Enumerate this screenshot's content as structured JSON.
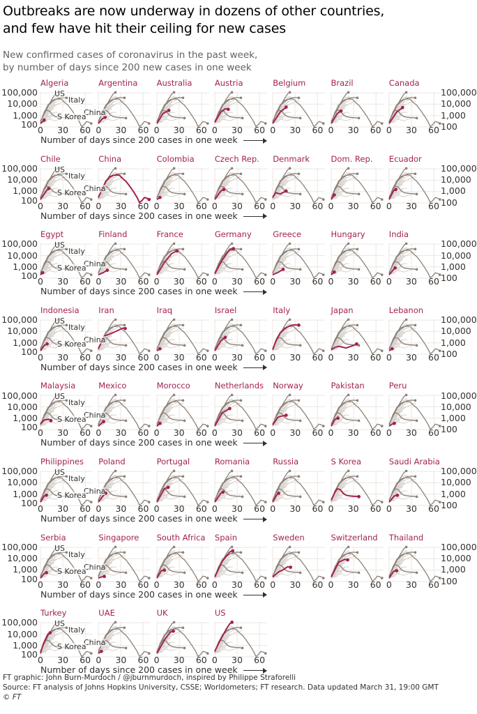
{
  "header": {
    "title_line1": "Outbreaks are now underway in dozens of other countries,",
    "title_line2": "and few have hit their ceiling for new cases",
    "subtitle_line1": "New confirmed cases of coronavirus in the past week,",
    "subtitle_line2": "by number of days since 200 new cases in one week"
  },
  "footer": {
    "credit": "FT graphic: John Burn-Murdoch / @jburnmurdoch, inspired by Philippe Straforelli",
    "source": "Source: FT analysis of Johns Hopkins University, CSSE; Worldometers; FT research. Data updated March 31, 19:00 GMT",
    "copyright": "© FT"
  },
  "colors": {
    "highlight": "#a3224f",
    "reference": "#8c8279",
    "background_lines": "#d9d4cf",
    "grid": "#ebe6e1"
  },
  "chart_data": {
    "type": "line",
    "layout": "small-multiples",
    "xlabel": "Number of days since 200 cases in one week",
    "ylabel": "New confirmed cases in the past week",
    "y_scale": "log",
    "ylim": [
      100,
      100000
    ],
    "xlim": [
      0,
      70
    ],
    "y_ticks": [
      "100,000",
      "10,000",
      "1,000",
      "100"
    ],
    "y_tick_values": [
      100000,
      10000,
      1000,
      100
    ],
    "x_ticks": [
      "0",
      "30",
      "60"
    ],
    "x_tick_values": [
      0,
      30,
      60
    ],
    "reference_series": [
      {
        "name": "US",
        "points": [
          [
            0,
            300
          ],
          [
            5,
            1500
          ],
          [
            10,
            6000
          ],
          [
            15,
            25000
          ],
          [
            20,
            80000
          ],
          [
            23,
            110000
          ]
        ]
      },
      {
        "name": "Italy",
        "points": [
          [
            0,
            250
          ],
          [
            5,
            2000
          ],
          [
            10,
            7000
          ],
          [
            15,
            15000
          ],
          [
            20,
            25000
          ],
          [
            25,
            35000
          ],
          [
            30,
            38000
          ],
          [
            35,
            36000
          ]
        ]
      },
      {
        "name": "China",
        "points": [
          [
            0,
            300
          ],
          [
            5,
            1500
          ],
          [
            10,
            8000
          ],
          [
            15,
            20000
          ],
          [
            20,
            26000
          ],
          [
            25,
            29000
          ],
          [
            28,
            28000
          ],
          [
            32,
            15000
          ],
          [
            37,
            8000
          ],
          [
            42,
            3000
          ],
          [
            47,
            1000
          ],
          [
            52,
            300
          ],
          [
            55,
            110
          ],
          [
            58,
            150
          ],
          [
            62,
            300
          ],
          [
            65,
            260
          ],
          [
            68,
            200
          ]
        ]
      },
      {
        "name": "S Korea",
        "points": [
          [
            0,
            300
          ],
          [
            5,
            1500
          ],
          [
            8,
            3000
          ],
          [
            12,
            2500
          ],
          [
            16,
            1200
          ],
          [
            20,
            800
          ],
          [
            25,
            700
          ],
          [
            30,
            650
          ],
          [
            37,
            600
          ]
        ]
      }
    ],
    "countries": [
      {
        "name": "Algeria",
        "points": [
          [
            0,
            200
          ],
          [
            5,
            400
          ]
        ]
      },
      {
        "name": "Argentina",
        "points": [
          [
            0,
            200
          ],
          [
            5,
            500
          ],
          [
            9,
            700
          ]
        ]
      },
      {
        "name": "Australia",
        "points": [
          [
            0,
            200
          ],
          [
            8,
            1500
          ],
          [
            16,
            2800
          ]
        ]
      },
      {
        "name": "Austria",
        "points": [
          [
            0,
            250
          ],
          [
            8,
            2000
          ],
          [
            14,
            4000
          ],
          [
            18,
            3500
          ]
        ]
      },
      {
        "name": "Belgium",
        "points": [
          [
            0,
            200
          ],
          [
            10,
            2000
          ],
          [
            18,
            5500
          ]
        ]
      },
      {
        "name": "Brazil",
        "points": [
          [
            0,
            200
          ],
          [
            8,
            1500
          ],
          [
            13,
            2500
          ]
        ]
      },
      {
        "name": "Canada",
        "points": [
          [
            0,
            200
          ],
          [
            10,
            2000
          ],
          [
            18,
            5000
          ]
        ]
      },
      {
        "name": "Chile",
        "points": [
          [
            0,
            200
          ],
          [
            8,
            1200
          ],
          [
            11,
            1800
          ]
        ]
      },
      {
        "name": "China",
        "points": [
          [
            0,
            300
          ],
          [
            5,
            1500
          ],
          [
            10,
            8000
          ],
          [
            15,
            20000
          ],
          [
            20,
            26000
          ],
          [
            25,
            29000
          ],
          [
            28,
            28000
          ],
          [
            32,
            15000
          ],
          [
            37,
            8000
          ],
          [
            42,
            3000
          ],
          [
            47,
            1000
          ],
          [
            52,
            300
          ],
          [
            55,
            110
          ],
          [
            58,
            150
          ],
          [
            62,
            300
          ],
          [
            65,
            260
          ],
          [
            68,
            200
          ]
        ]
      },
      {
        "name": "Colombia",
        "points": [
          [
            0,
            200
          ],
          [
            4,
            300
          ]
        ]
      },
      {
        "name": "Czech Rep.",
        "points": [
          [
            0,
            200
          ],
          [
            8,
            1100
          ],
          [
            12,
            1500
          ]
        ]
      },
      {
        "name": "Denmark",
        "points": [
          [
            0,
            300
          ],
          [
            4,
            800
          ],
          [
            10,
            600
          ],
          [
            18,
            1100
          ]
        ]
      },
      {
        "name": "Dom. Rep.",
        "points": [
          [
            0,
            200
          ],
          [
            4,
            500
          ]
        ]
      },
      {
        "name": "Ecuador",
        "points": [
          [
            0,
            200
          ],
          [
            6,
            1200
          ],
          [
            9,
            1500
          ]
        ]
      },
      {
        "name": "Egypt",
        "points": [
          [
            0,
            200
          ],
          [
            3,
            300
          ]
        ]
      },
      {
        "name": "Finland",
        "points": [
          [
            0,
            200
          ],
          [
            6,
            300
          ],
          [
            12,
            500
          ]
        ]
      },
      {
        "name": "France",
        "points": [
          [
            0,
            200
          ],
          [
            10,
            2500
          ],
          [
            20,
            15000
          ],
          [
            27,
            25000
          ]
        ]
      },
      {
        "name": "Germany",
        "points": [
          [
            0,
            250
          ],
          [
            10,
            4000
          ],
          [
            20,
            35000
          ],
          [
            25,
            40000
          ]
        ]
      },
      {
        "name": "Greece",
        "points": [
          [
            0,
            200
          ],
          [
            8,
            350
          ],
          [
            14,
            600
          ]
        ]
      },
      {
        "name": "Hungary",
        "points": [
          [
            0,
            200
          ],
          [
            4,
            350
          ]
        ]
      },
      {
        "name": "India",
        "points": [
          [
            0,
            200
          ],
          [
            5,
            500
          ],
          [
            8,
            800
          ]
        ]
      },
      {
        "name": "Indonesia",
        "points": [
          [
            0,
            200
          ],
          [
            5,
            600
          ],
          [
            9,
            800
          ]
        ]
      },
      {
        "name": "Iran",
        "points": [
          [
            0,
            300
          ],
          [
            8,
            4000
          ],
          [
            20,
            8000
          ],
          [
            33,
            20000
          ],
          [
            36,
            18000
          ]
        ]
      },
      {
        "name": "Iraq",
        "points": [
          [
            0,
            200
          ],
          [
            4,
            300
          ]
        ]
      },
      {
        "name": "Israel",
        "points": [
          [
            0,
            200
          ],
          [
            8,
            1500
          ],
          [
            14,
            3000
          ]
        ]
      },
      {
        "name": "Italy",
        "points": [
          [
            0,
            250
          ],
          [
            5,
            2000
          ],
          [
            10,
            7000
          ],
          [
            15,
            15000
          ],
          [
            20,
            25000
          ],
          [
            25,
            35000
          ],
          [
            30,
            38000
          ],
          [
            35,
            36000
          ]
        ]
      },
      {
        "name": "Japan",
        "points": [
          [
            0,
            250
          ],
          [
            5,
            400
          ],
          [
            10,
            500
          ],
          [
            20,
            350
          ],
          [
            30,
            600
          ],
          [
            34,
            800
          ]
        ]
      },
      {
        "name": "Lebanon",
        "points": [
          [
            0,
            200
          ],
          [
            4,
            300
          ]
        ]
      },
      {
        "name": "Malaysia",
        "points": [
          [
            0,
            300
          ],
          [
            5,
            700
          ],
          [
            11,
            800
          ],
          [
            14,
            600
          ]
        ]
      },
      {
        "name": "Mexico",
        "points": [
          [
            0,
            200
          ],
          [
            5,
            400
          ],
          [
            7,
            500
          ]
        ]
      },
      {
        "name": "Morocco",
        "points": [
          [
            0,
            200
          ],
          [
            4,
            350
          ]
        ]
      },
      {
        "name": "Netherlands",
        "points": [
          [
            0,
            200
          ],
          [
            10,
            3000
          ],
          [
            20,
            7000
          ]
        ]
      },
      {
        "name": "Norway",
        "points": [
          [
            0,
            250
          ],
          [
            7,
            1200
          ],
          [
            12,
            1500
          ],
          [
            18,
            1800
          ]
        ]
      },
      {
        "name": "Pakistan",
        "points": [
          [
            0,
            200
          ],
          [
            5,
            800
          ],
          [
            9,
            1000
          ]
        ]
      },
      {
        "name": "Peru",
        "points": [
          [
            0,
            200
          ],
          [
            4,
            300
          ],
          [
            7,
            350
          ]
        ]
      },
      {
        "name": "Philippines",
        "points": [
          [
            0,
            200
          ],
          [
            5,
            700
          ],
          [
            8,
            800
          ]
        ]
      },
      {
        "name": "Poland",
        "points": [
          [
            0,
            200
          ],
          [
            7,
            800
          ],
          [
            10,
            1200
          ]
        ]
      },
      {
        "name": "Portugal",
        "points": [
          [
            0,
            200
          ],
          [
            10,
            3000
          ],
          [
            15,
            4000
          ]
        ]
      },
      {
        "name": "Romania",
        "points": [
          [
            0,
            200
          ],
          [
            8,
            1200
          ],
          [
            11,
            1500
          ]
        ]
      },
      {
        "name": "Russia",
        "points": [
          [
            0,
            200
          ],
          [
            5,
            800
          ],
          [
            8,
            1200
          ]
        ]
      },
      {
        "name": "S Korea",
        "points": [
          [
            0,
            300
          ],
          [
            5,
            1500
          ],
          [
            8,
            3000
          ],
          [
            12,
            2500
          ],
          [
            16,
            1200
          ],
          [
            20,
            800
          ],
          [
            25,
            700
          ],
          [
            30,
            650
          ],
          [
            37,
            600
          ]
        ]
      },
      {
        "name": "Saudi Arabia",
        "points": [
          [
            0,
            200
          ],
          [
            7,
            700
          ],
          [
            11,
            800
          ]
        ]
      },
      {
        "name": "Serbia",
        "points": [
          [
            0,
            200
          ],
          [
            5,
            500
          ],
          [
            8,
            600
          ]
        ]
      },
      {
        "name": "Singapore",
        "points": [
          [
            0,
            200
          ],
          [
            4,
            250
          ],
          [
            8,
            280
          ]
        ]
      },
      {
        "name": "South Africa",
        "points": [
          [
            0,
            200
          ],
          [
            6,
            900
          ],
          [
            10,
            1000
          ]
        ]
      },
      {
        "name": "Spain",
        "points": [
          [
            0,
            250
          ],
          [
            10,
            6000
          ],
          [
            20,
            40000
          ],
          [
            24,
            50000
          ]
        ]
      },
      {
        "name": "Sweden",
        "points": [
          [
            0,
            250
          ],
          [
            8,
            700
          ],
          [
            15,
            1200
          ],
          [
            20,
            2000
          ],
          [
            24,
            1800
          ]
        ]
      },
      {
        "name": "Switzerland",
        "points": [
          [
            0,
            250
          ],
          [
            10,
            5000
          ],
          [
            18,
            9000
          ],
          [
            22,
            8000
          ]
        ]
      },
      {
        "name": "Thailand",
        "points": [
          [
            0,
            200
          ],
          [
            6,
            800
          ],
          [
            10,
            900
          ]
        ]
      },
      {
        "name": "Turkey",
        "points": [
          [
            0,
            200
          ],
          [
            4,
            1500
          ],
          [
            10,
            10000
          ],
          [
            13,
            13000
          ]
        ]
      },
      {
        "name": "UAE",
        "points": [
          [
            0,
            200
          ],
          [
            4,
            300
          ]
        ]
      },
      {
        "name": "UK",
        "points": [
          [
            0,
            200
          ],
          [
            10,
            3000
          ],
          [
            18,
            15000
          ],
          [
            22,
            18000
          ]
        ]
      },
      {
        "name": "US",
        "points": [
          [
            0,
            300
          ],
          [
            5,
            1500
          ],
          [
            10,
            6000
          ],
          [
            15,
            25000
          ],
          [
            20,
            80000
          ],
          [
            23,
            110000
          ]
        ]
      }
    ]
  }
}
